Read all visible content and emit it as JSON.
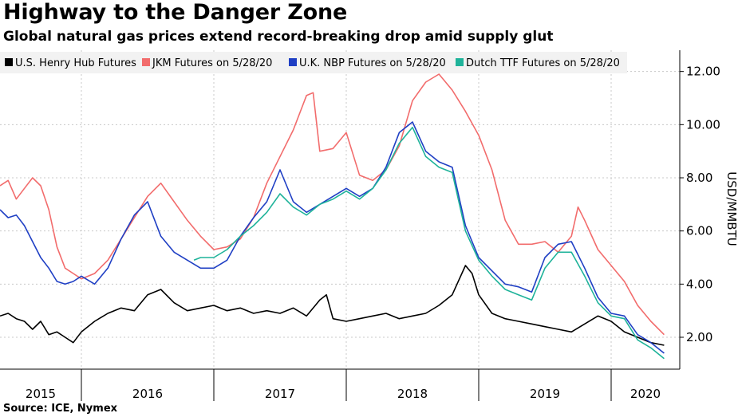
{
  "chart_data": {
    "type": "line",
    "title": "Highway to the Danger Zone",
    "subtitle": "Global natural gas prices extend record-breaking drop amid supply glut",
    "source": "Source: ICE, Nymex",
    "ylabel": "USD/MMBTU",
    "ylim": [
      0.8,
      12.8
    ],
    "y_ticks": [
      "2.00",
      "4.00",
      "6.00",
      "8.00",
      "10.00",
      "12.00"
    ],
    "y_tick_values": [
      2,
      4,
      6,
      8,
      10,
      12
    ],
    "x_range": [
      2015.0,
      2020.5
    ],
    "x_labels": [
      "2015",
      "2016",
      "2017",
      "2018",
      "2019",
      "2020"
    ],
    "legend_position": "top",
    "series": [
      {
        "name": "U.S. Henry Hub Futures",
        "color": "#000000",
        "x": [
          2015.0,
          2015.1,
          2015.2,
          2015.3,
          2015.4,
          2015.5,
          2015.6,
          2015.7,
          2015.8,
          2015.9,
          2016.0,
          2016.1,
          2016.2,
          2016.3,
          2016.4,
          2016.5,
          2016.6,
          2016.7,
          2016.8,
          2016.9,
          2017.0,
          2017.1,
          2017.2,
          2017.3,
          2017.4,
          2017.5,
          2017.6,
          2017.7,
          2017.8,
          2017.85,
          2017.9,
          2018.0,
          2018.1,
          2018.2,
          2018.3,
          2018.4,
          2018.5,
          2018.6,
          2018.7,
          2018.8,
          2018.9,
          2018.95,
          2019.0,
          2019.1,
          2019.2,
          2019.3,
          2019.4,
          2019.5,
          2019.6,
          2019.7,
          2019.8,
          2019.9,
          2020.0,
          2020.1,
          2020.2,
          2020.3,
          2020.4
        ],
        "values": [
          2.8,
          2.9,
          2.7,
          2.6,
          2.3,
          2.6,
          2.1,
          2.2,
          2.0,
          1.8,
          2.2,
          2.6,
          2.9,
          3.1,
          3.0,
          3.6,
          3.8,
          3.3,
          3.0,
          3.1,
          3.2,
          3.0,
          3.1,
          2.9,
          3.0,
          2.9,
          3.1,
          2.8,
          3.4,
          3.6,
          2.7,
          2.6,
          2.7,
          2.8,
          2.9,
          2.7,
          2.8,
          2.9,
          3.2,
          3.6,
          4.7,
          4.4,
          3.6,
          2.9,
          2.7,
          2.6,
          2.5,
          2.4,
          2.3,
          2.2,
          2.5,
          2.8,
          2.6,
          2.2,
          2.0,
          1.8,
          1.7
        ]
      },
      {
        "name": "JKM Futures on 5/28/20",
        "color": "#f26c6c",
        "x": [
          2015.0,
          2015.1,
          2015.2,
          2015.3,
          2015.4,
          2015.5,
          2015.6,
          2015.7,
          2015.8,
          2015.9,
          2016.0,
          2016.1,
          2016.2,
          2016.3,
          2016.4,
          2016.5,
          2016.6,
          2016.7,
          2016.8,
          2016.9,
          2017.0,
          2017.1,
          2017.2,
          2017.3,
          2017.4,
          2017.5,
          2017.6,
          2017.7,
          2017.75,
          2017.8,
          2017.9,
          2018.0,
          2018.1,
          2018.2,
          2018.3,
          2018.4,
          2018.5,
          2018.6,
          2018.7,
          2018.8,
          2018.9,
          2019.0,
          2019.1,
          2019.2,
          2019.3,
          2019.4,
          2019.5,
          2019.6,
          2019.7,
          2019.75,
          2019.8,
          2019.9,
          2020.0,
          2020.1,
          2020.2,
          2020.3,
          2020.4
        ],
        "values": [
          7.7,
          7.9,
          7.2,
          7.6,
          8.0,
          7.7,
          6.8,
          5.4,
          4.6,
          4.4,
          4.2,
          4.4,
          4.9,
          5.7,
          6.5,
          7.3,
          7.8,
          7.1,
          6.4,
          5.8,
          5.3,
          5.4,
          5.7,
          6.5,
          7.8,
          8.8,
          9.8,
          11.1,
          11.2,
          9.0,
          9.1,
          9.7,
          8.1,
          7.9,
          8.3,
          9.2,
          10.9,
          11.6,
          11.9,
          11.3,
          10.5,
          9.6,
          8.3,
          6.4,
          5.5,
          5.5,
          5.6,
          5.2,
          5.8,
          6.9,
          6.4,
          5.3,
          4.7,
          4.1,
          3.2,
          2.6,
          2.1
        ]
      },
      {
        "name": "U.K. NBP Futures on 5/28/20",
        "color": "#1f3fc4",
        "x": [
          2015.0,
          2015.1,
          2015.2,
          2015.3,
          2015.4,
          2015.5,
          2015.6,
          2015.7,
          2015.8,
          2015.9,
          2016.0,
          2016.1,
          2016.2,
          2016.3,
          2016.4,
          2016.5,
          2016.6,
          2016.7,
          2016.8,
          2016.9,
          2017.0,
          2017.1,
          2017.2,
          2017.3,
          2017.4,
          2017.5,
          2017.6,
          2017.7,
          2017.8,
          2017.9,
          2018.0,
          2018.1,
          2018.2,
          2018.3,
          2018.4,
          2018.5,
          2018.6,
          2018.7,
          2018.8,
          2018.9,
          2019.0,
          2019.1,
          2019.2,
          2019.3,
          2019.4,
          2019.5,
          2019.6,
          2019.7,
          2019.8,
          2019.9,
          2020.0,
          2020.1,
          2020.2,
          2020.3,
          2020.4
        ],
        "values": [
          6.8,
          6.5,
          6.6,
          6.2,
          5.6,
          5.0,
          4.6,
          4.1,
          4.0,
          4.1,
          4.3,
          4.0,
          4.6,
          5.7,
          6.6,
          7.1,
          5.8,
          5.2,
          4.9,
          4.6,
          4.6,
          4.9,
          5.8,
          6.5,
          7.1,
          8.3,
          7.1,
          6.7,
          7.0,
          7.3,
          7.6,
          7.3,
          7.6,
          8.4,
          9.7,
          10.1,
          9.0,
          8.6,
          8.4,
          6.2,
          5.0,
          4.5,
          4.0,
          3.9,
          3.7,
          5.0,
          5.5,
          5.6,
          4.6,
          3.5,
          2.9,
          2.8,
          2.1,
          1.8,
          1.4
        ]
      },
      {
        "name": "Dutch TTF Futures on 5/28/20",
        "color": "#1fb39a",
        "x": [
          2016.85,
          2016.9,
          2017.0,
          2017.1,
          2017.2,
          2017.3,
          2017.4,
          2017.5,
          2017.6,
          2017.7,
          2017.8,
          2017.9,
          2018.0,
          2018.1,
          2018.2,
          2018.3,
          2018.4,
          2018.5,
          2018.6,
          2018.7,
          2018.8,
          2018.9,
          2019.0,
          2019.1,
          2019.2,
          2019.3,
          2019.4,
          2019.5,
          2019.6,
          2019.7,
          2019.8,
          2019.9,
          2020.0,
          2020.1,
          2020.2,
          2020.3,
          2020.4
        ],
        "values": [
          4.9,
          5.0,
          5.0,
          5.3,
          5.8,
          6.2,
          6.7,
          7.4,
          6.9,
          6.6,
          7.0,
          7.2,
          7.5,
          7.2,
          7.6,
          8.3,
          9.3,
          9.9,
          8.8,
          8.4,
          8.2,
          6.0,
          4.9,
          4.3,
          3.8,
          3.6,
          3.4,
          4.6,
          5.2,
          5.2,
          4.3,
          3.3,
          2.8,
          2.7,
          1.9,
          1.6,
          1.2
        ]
      }
    ]
  }
}
